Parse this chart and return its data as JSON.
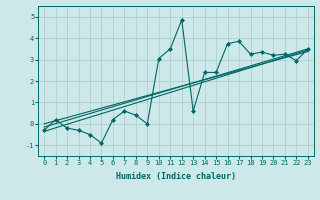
{
  "xlabel": "Humidex (Indice chaleur)",
  "bg_color": "#cce8e8",
  "line_color": "#006666",
  "grid_color": "#aacccc",
  "xlim": [
    -0.5,
    23.5
  ],
  "ylim": [
    -1.5,
    5.5
  ],
  "xticks": [
    0,
    1,
    2,
    3,
    4,
    5,
    6,
    7,
    8,
    9,
    10,
    11,
    12,
    13,
    14,
    15,
    16,
    17,
    18,
    19,
    20,
    21,
    22,
    23
  ],
  "yticks": [
    -1,
    0,
    1,
    2,
    3,
    4,
    5
  ],
  "x_data": [
    0,
    1,
    2,
    3,
    4,
    5,
    6,
    7,
    8,
    9,
    10,
    11,
    12,
    13,
    14,
    15,
    16,
    17,
    18,
    19,
    20,
    21,
    22,
    23
  ],
  "y_scatter": [
    -0.3,
    0.2,
    -0.2,
    -0.3,
    -0.5,
    -0.9,
    0.2,
    0.6,
    0.4,
    0.0,
    3.05,
    3.5,
    4.85,
    0.6,
    2.4,
    2.4,
    3.75,
    3.85,
    3.25,
    3.35,
    3.2,
    3.25,
    2.95,
    3.5
  ],
  "reg_lines": [
    {
      "x": [
        0,
        23
      ],
      "y": [
        -0.35,
        3.45
      ]
    },
    {
      "x": [
        0,
        23
      ],
      "y": [
        -0.15,
        3.5
      ]
    },
    {
      "x": [
        0,
        23
      ],
      "y": [
        0.0,
        3.38
      ]
    }
  ],
  "font_family": "monospace",
  "tick_fontsize": 5,
  "label_fontsize": 6,
  "marker": "D",
  "markersize": 2.0,
  "linewidth": 0.8
}
